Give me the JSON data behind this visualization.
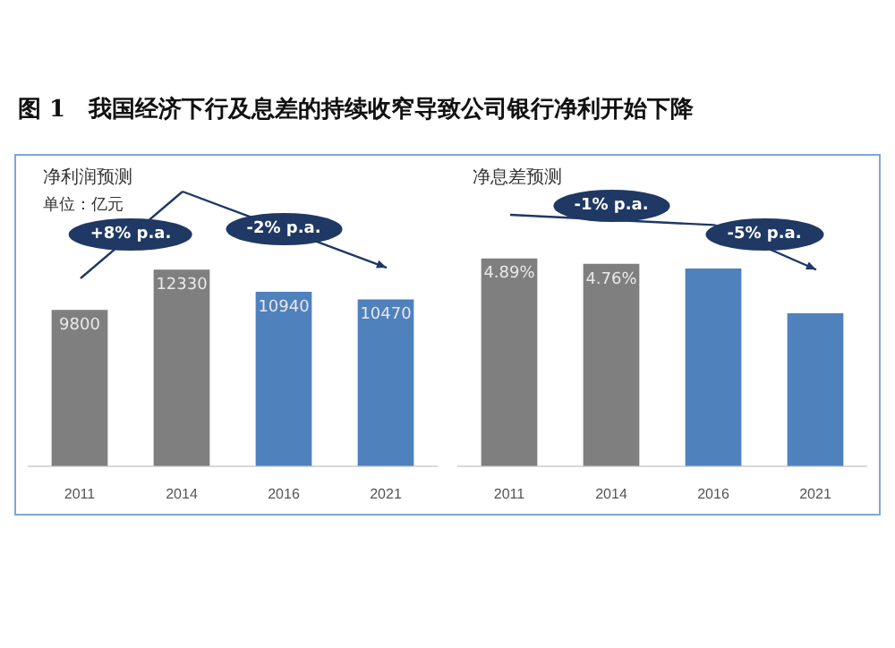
{
  "chart_data": [
    {
      "type": "bar",
      "title": "图 1　我国经济下行及息差的持续收窄导致公司银行净利开始下降",
      "subtitle": "净利润预测",
      "ylabel": "单位：亿元",
      "categories": [
        "2011",
        "2014",
        "2016",
        "2021"
      ],
      "values": [
        9800,
        12330,
        10940,
        10470
      ],
      "colors": [
        "#7f7f7f",
        "#7f7f7f",
        "#4f81bd",
        "#4f81bd"
      ],
      "value_labels": [
        "9800",
        "12330",
        "10940",
        "10470"
      ],
      "annotations": [
        "+8% p.a.",
        "-2% p.a."
      ]
    },
    {
      "type": "bar",
      "subtitle": "净息差预测",
      "categories": [
        "2011",
        "2014",
        "2016",
        "2021"
      ],
      "values": [
        4.89,
        4.76,
        4.65,
        3.6
      ],
      "colors": [
        "#7f7f7f",
        "#7f7f7f",
        "#4f81bd",
        "#4f81bd"
      ],
      "value_labels": [
        "4.89%",
        "4.76%",
        null,
        null
      ],
      "annotations": [
        "-1% p.a.",
        "-5% p.a."
      ]
    }
  ]
}
